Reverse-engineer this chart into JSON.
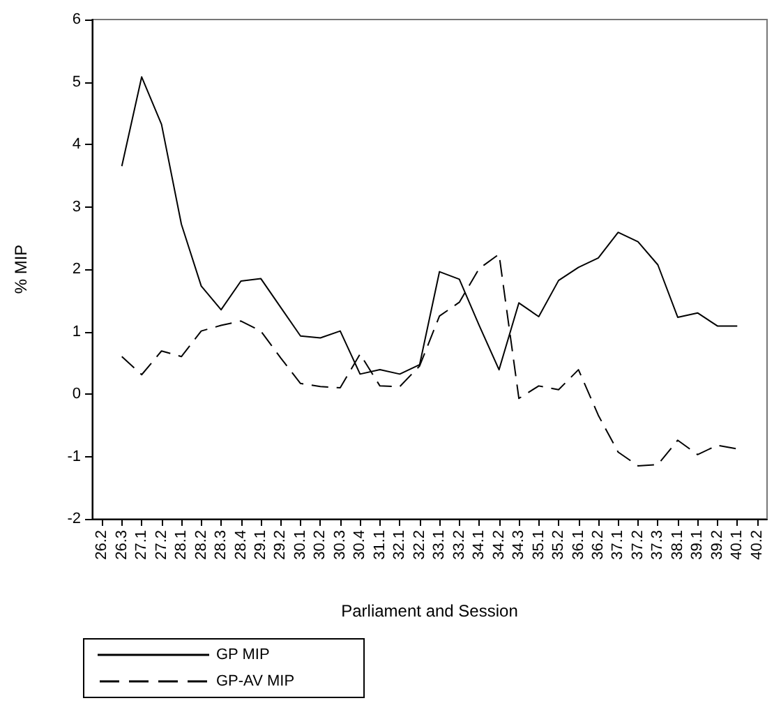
{
  "chart_data": {
    "type": "line",
    "xlabel": "Parliament and Session",
    "ylabel": "% MIP",
    "categories": [
      "26.2",
      "26.3",
      "27.1",
      "27.2",
      "28.1",
      "28.2",
      "28.3",
      "28.4",
      "29.1",
      "29.2",
      "30.1",
      "30.2",
      "30.3",
      "30.4",
      "31.1",
      "32.1",
      "32.2",
      "33.1",
      "33.2",
      "34.1",
      "34.2",
      "34.3",
      "35.1",
      "35.2",
      "36.1",
      "36.2",
      "37.1",
      "37.2",
      "37.3",
      "38.1",
      "39.1",
      "39.2",
      "40.1",
      "40.2"
    ],
    "series": [
      {
        "name": "GP MIP",
        "color": "#000000",
        "line_style": "solid",
        "values": [
          null,
          3.65,
          5.08,
          4.32,
          2.72,
          1.73,
          1.35,
          1.81,
          1.85,
          1.39,
          0.93,
          0.9,
          1.01,
          0.32,
          0.39,
          0.32,
          0.47,
          1.96,
          1.84,
          1.1,
          0.39,
          1.46,
          1.24,
          1.82,
          2.03,
          2.18,
          2.59,
          2.44,
          2.07,
          1.23,
          1.3,
          1.09,
          1.09,
          null
        ]
      },
      {
        "name": "GP-AV MIP",
        "color": "#000000",
        "line_style": "dashed",
        "values": [
          null,
          0.6,
          0.31,
          0.69,
          0.6,
          1.01,
          1.1,
          1.17,
          1.01,
          0.58,
          0.17,
          0.12,
          0.1,
          0.64,
          0.13,
          0.12,
          0.45,
          1.25,
          1.47,
          2.01,
          2.24,
          -0.07,
          0.13,
          0.07,
          0.39,
          -0.34,
          -0.93,
          -1.15,
          -1.13,
          -0.74,
          -0.97,
          -0.82,
          -0.88,
          null
        ]
      }
    ],
    "ylim": [
      -2,
      6
    ],
    "yticks": [
      -2,
      -1,
      0,
      1,
      2,
      3,
      4,
      5,
      6
    ],
    "grid": false,
    "legend": "bottom left",
    "marker": "none"
  }
}
